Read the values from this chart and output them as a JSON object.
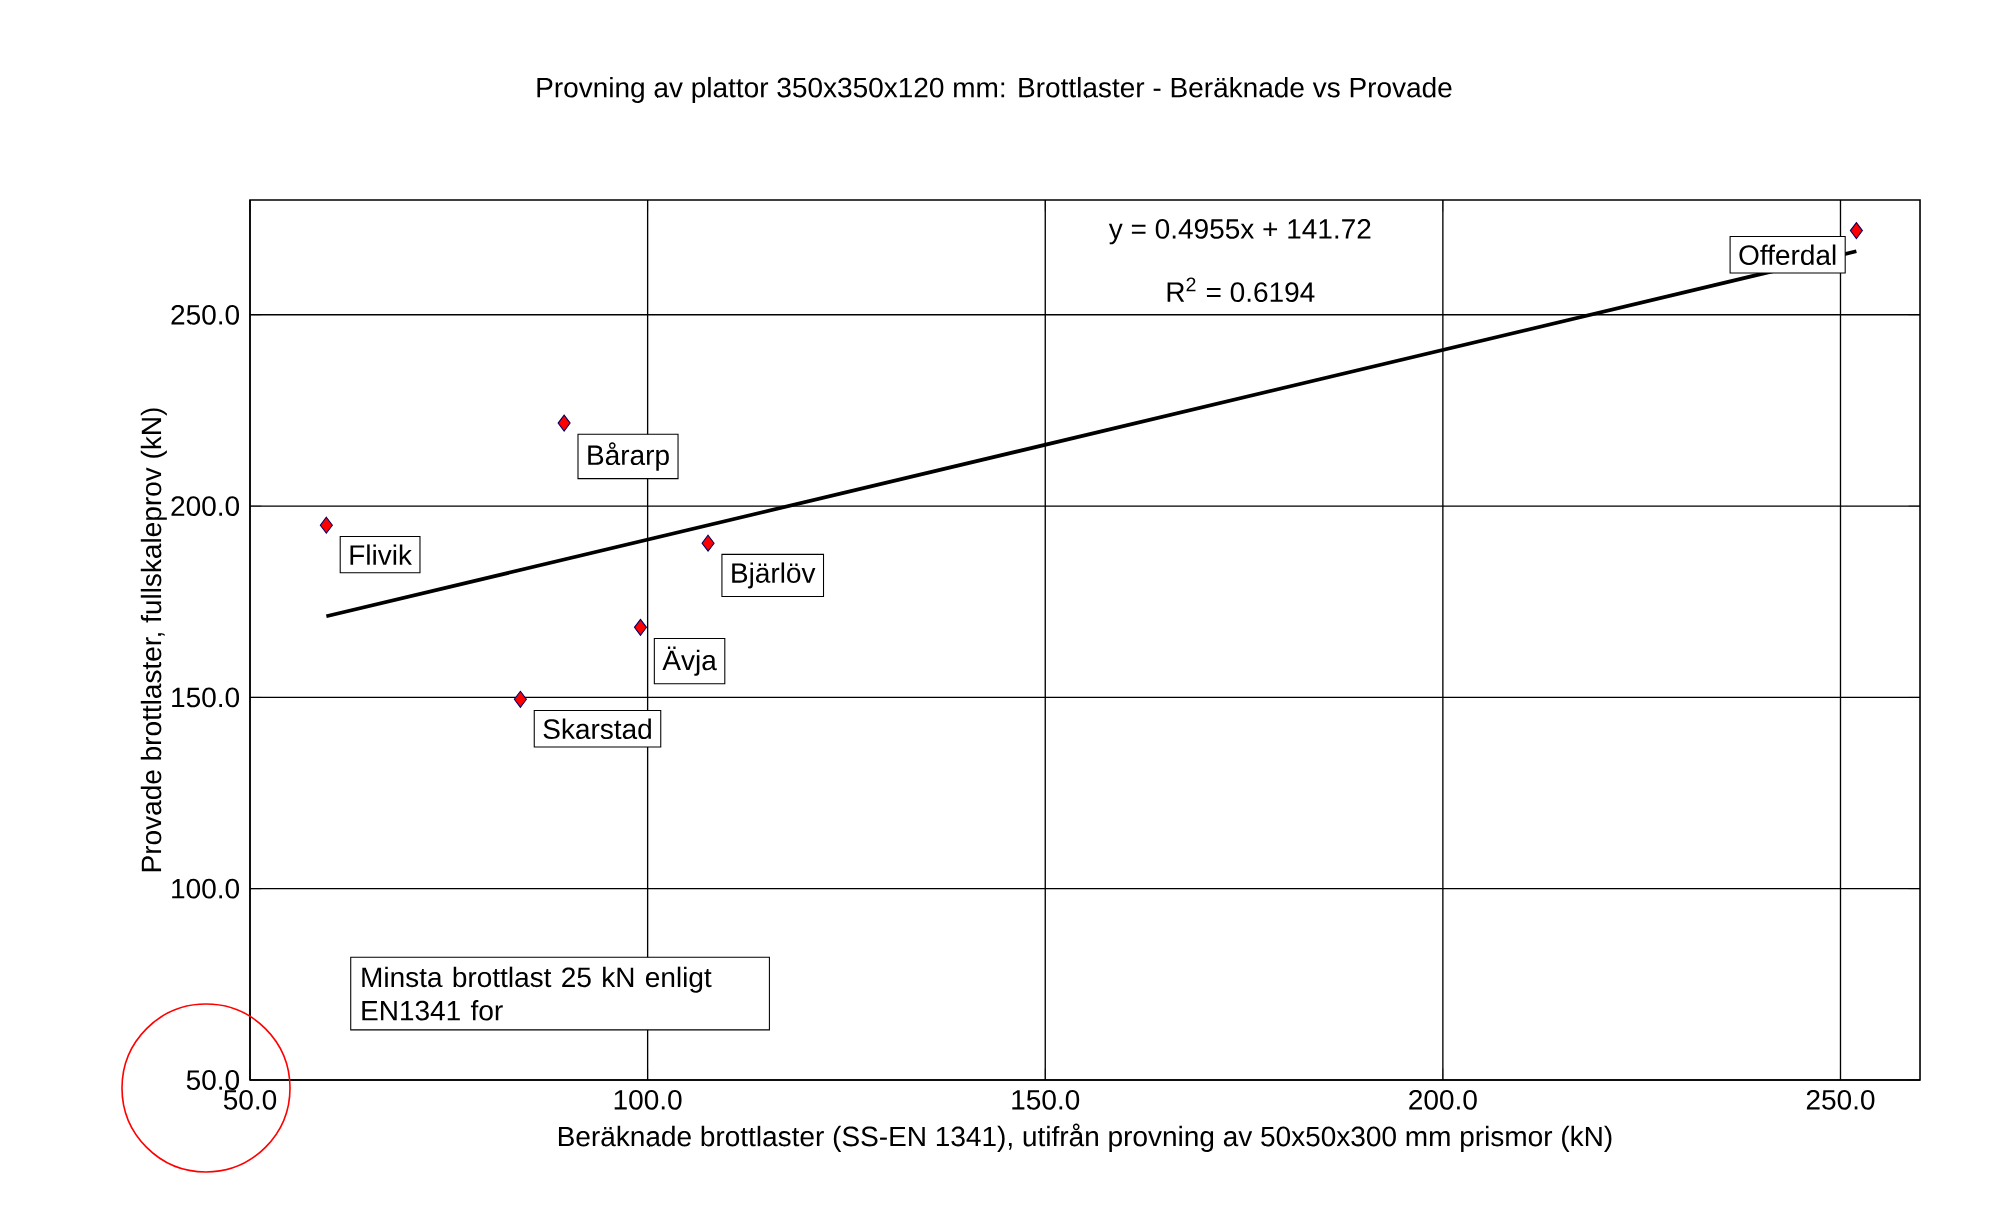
{
  "chart_data": {
    "type": "scatter",
    "title": "Provning av plattor 350x350x120 mm: Brottlaster - Beräknade vs Provade",
    "xlabel": "Beräknade brottlaster (SS-EN 1341), utifrån provning av 50x50x300 mm prismor (kN)",
    "ylabel": "Provade brottlaster, fullskaleprov (kN)",
    "series": [
      {
        "color": "#ff0000",
        "marker": "diamond",
        "x": [
          59.6,
          89.5,
          107.6,
          99.1,
          84.0,
          252.0
        ],
        "values": [
          195.0,
          221.7,
          190.3,
          168.3,
          149.5,
          272.0
        ]
      },
      {
        "type": "line",
        "color": "#000000",
        "x": [
          59.6,
          252.0
        ],
        "values": [
          171.2,
          266.6
        ]
      }
    ],
    "xlim": [
      50,
      260
    ],
    "ylim": [
      50,
      280
    ],
    "xticks": [
      {
        "value": 50,
        "label": "50.0"
      },
      {
        "value": 100,
        "label": "100.0"
      },
      {
        "value": 150,
        "label": "150.0"
      },
      {
        "value": 200,
        "label": "200.0"
      },
      {
        "value": 250,
        "label": "250.0"
      }
    ],
    "yticks": [
      {
        "value": 50,
        "label": "50.0"
      },
      {
        "value": 100,
        "label": "100.0"
      },
      {
        "value": 150,
        "label": "150.0"
      },
      {
        "value": 200,
        "label": "200.0"
      },
      {
        "value": 250,
        "label": "250.0"
      }
    ],
    "grid": true,
    "annotations": [
      "y = 0.4955x + 141.72",
      "R$^{2}$ = 0.6194",
      "Minsta brottlast 25 kN enligt EN1341 for",
      {
        "text": "Flivik",
        "x": 59.6,
        "y": 195.0
      },
      {
        "text": "Bårarp",
        "x": 89.5,
        "y": 221.7
      },
      {
        "text": "Bjärlöv",
        "x": 107.6,
        "y": 190.3
      },
      {
        "text": "Ävja",
        "x": 99.1,
        "y": 168.3
      },
      {
        "text": "Skarstad",
        "x": 84.0,
        "y": 149.5
      },
      {
        "text": "Offerdal",
        "x": 252.0,
        "y": 272.0
      }
    ]
  }
}
